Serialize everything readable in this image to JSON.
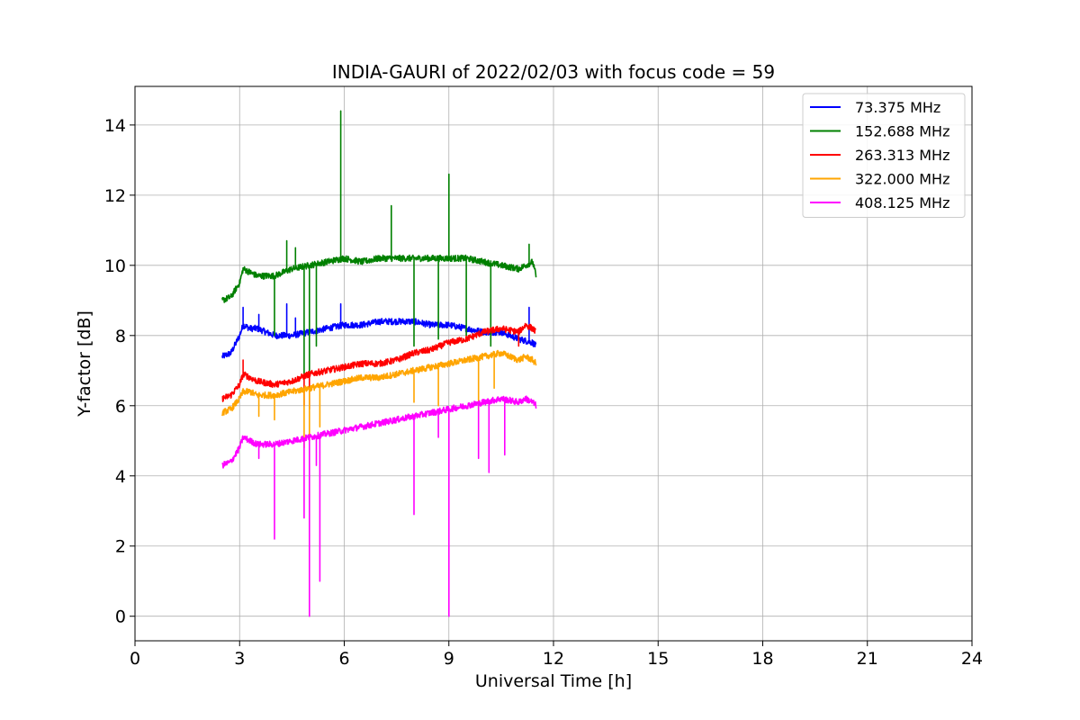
{
  "chart_data": {
    "type": "line",
    "title": "INDIA-GAURI of 2022/02/03 with focus code = 59",
    "xlabel": "Universal Time [h]",
    "ylabel": "Y-factor [dB]",
    "xlim": [
      0,
      24
    ],
    "ylim": [
      -0.7,
      15.1
    ],
    "xticks": [
      0,
      3,
      6,
      9,
      12,
      15,
      18,
      21,
      24
    ],
    "yticks": [
      0,
      2,
      4,
      6,
      8,
      10,
      12,
      14
    ],
    "grid": true,
    "legend_position": "top-right",
    "series": [
      {
        "name": " 73.375 MHz",
        "color": "#0000ff",
        "x": [
          2.5,
          2.75,
          3.0,
          3.1,
          3.3,
          3.5,
          4.0,
          4.5,
          5.0,
          5.5,
          6.0,
          6.5,
          7.0,
          7.5,
          8.0,
          8.5,
          9.0,
          9.5,
          10.0,
          10.5,
          11.0,
          11.2,
          11.4,
          11.5
        ],
        "y": [
          7.4,
          7.5,
          8.0,
          8.3,
          8.2,
          8.2,
          8.0,
          8.0,
          8.1,
          8.2,
          8.3,
          8.3,
          8.4,
          8.4,
          8.4,
          8.3,
          8.3,
          8.2,
          8.1,
          8.1,
          7.9,
          7.85,
          7.8,
          7.7
        ],
        "spikes": [
          [
            3.1,
            8.8
          ],
          [
            3.55,
            8.6
          ],
          [
            4.35,
            8.9
          ],
          [
            4.6,
            8.5
          ],
          [
            5.9,
            8.9
          ],
          [
            11.3,
            8.8
          ]
        ]
      },
      {
        "name": "152.688 MHz",
        "color": "#008000",
        "x": [
          2.5,
          2.75,
          3.0,
          3.1,
          3.3,
          3.5,
          4.0,
          4.5,
          5.0,
          5.5,
          6.0,
          6.5,
          7.0,
          7.5,
          8.0,
          8.5,
          9.0,
          9.5,
          10.0,
          10.5,
          11.0,
          11.2,
          11.4,
          11.5
        ],
        "y": [
          9.0,
          9.1,
          9.5,
          9.9,
          9.8,
          9.7,
          9.7,
          9.9,
          10.0,
          10.1,
          10.2,
          10.1,
          10.2,
          10.2,
          10.2,
          10.2,
          10.2,
          10.2,
          10.1,
          10.0,
          9.9,
          10.0,
          10.1,
          9.7
        ],
        "spikes": [
          [
            4.0,
            8.0
          ],
          [
            4.35,
            10.7
          ],
          [
            4.6,
            10.5
          ],
          [
            4.85,
            6.9
          ],
          [
            5.0,
            6.8
          ],
          [
            5.2,
            7.7
          ],
          [
            5.9,
            14.4
          ],
          [
            7.35,
            11.7
          ],
          [
            8.0,
            7.7
          ],
          [
            8.7,
            7.9
          ],
          [
            9.0,
            12.6
          ],
          [
            9.5,
            8.0
          ],
          [
            10.2,
            7.7
          ],
          [
            11.3,
            10.6
          ]
        ]
      },
      {
        "name": "263.313 MHz",
        "color": "#ff0000",
        "x": [
          2.5,
          2.75,
          3.0,
          3.1,
          3.3,
          3.5,
          4.0,
          4.5,
          5.0,
          5.5,
          6.0,
          6.5,
          7.0,
          7.5,
          8.0,
          8.5,
          9.0,
          9.5,
          10.0,
          10.5,
          11.0,
          11.2,
          11.4,
          11.5
        ],
        "y": [
          6.2,
          6.3,
          6.6,
          6.9,
          6.8,
          6.7,
          6.6,
          6.7,
          6.9,
          7.0,
          7.1,
          7.2,
          7.2,
          7.3,
          7.5,
          7.6,
          7.8,
          7.9,
          8.1,
          8.2,
          8.1,
          8.3,
          8.2,
          8.1
        ],
        "spikes": [
          [
            3.1,
            7.3
          ],
          [
            4.85,
            6.0
          ],
          [
            5.0,
            5.9
          ],
          [
            11.0,
            7.7
          ]
        ]
      },
      {
        "name": "322.000 MHz",
        "color": "#ffa500",
        "x": [
          2.5,
          2.75,
          3.0,
          3.1,
          3.3,
          3.5,
          4.0,
          4.5,
          5.0,
          5.5,
          6.0,
          6.5,
          7.0,
          7.5,
          8.0,
          8.5,
          9.0,
          9.5,
          10.0,
          10.5,
          11.0,
          11.2,
          11.4,
          11.5
        ],
        "y": [
          5.8,
          5.9,
          6.2,
          6.4,
          6.4,
          6.3,
          6.3,
          6.4,
          6.5,
          6.6,
          6.7,
          6.8,
          6.8,
          6.9,
          7.0,
          7.1,
          7.2,
          7.3,
          7.4,
          7.5,
          7.3,
          7.4,
          7.3,
          7.2
        ],
        "spikes": [
          [
            3.55,
            5.7
          ],
          [
            4.0,
            5.6
          ],
          [
            4.85,
            4.8
          ],
          [
            5.0,
            5.0
          ],
          [
            5.3,
            5.4
          ],
          [
            8.0,
            6.1
          ],
          [
            8.7,
            6.0
          ],
          [
            9.85,
            5.9
          ],
          [
            10.3,
            6.5
          ]
        ]
      },
      {
        "name": "408.125 MHz",
        "color": "#ff00ff",
        "x": [
          2.5,
          2.75,
          3.0,
          3.1,
          3.3,
          3.5,
          4.0,
          4.5,
          5.0,
          5.5,
          6.0,
          6.5,
          7.0,
          7.5,
          8.0,
          8.5,
          9.0,
          9.5,
          10.0,
          10.5,
          11.0,
          11.2,
          11.4,
          11.5
        ],
        "y": [
          4.3,
          4.4,
          4.8,
          5.1,
          5.0,
          4.9,
          4.9,
          5.0,
          5.1,
          5.2,
          5.3,
          5.4,
          5.5,
          5.6,
          5.7,
          5.8,
          5.9,
          6.0,
          6.1,
          6.2,
          6.1,
          6.2,
          6.1,
          6.0
        ],
        "spikes": [
          [
            3.55,
            4.5
          ],
          [
            4.0,
            2.2
          ],
          [
            4.85,
            2.8
          ],
          [
            5.0,
            0.0
          ],
          [
            5.2,
            4.3
          ],
          [
            5.3,
            1.0
          ],
          [
            8.0,
            2.9
          ],
          [
            8.7,
            5.1
          ],
          [
            9.0,
            0.0
          ],
          [
            9.85,
            4.5
          ],
          [
            10.15,
            4.1
          ],
          [
            10.6,
            4.6
          ]
        ]
      }
    ]
  }
}
